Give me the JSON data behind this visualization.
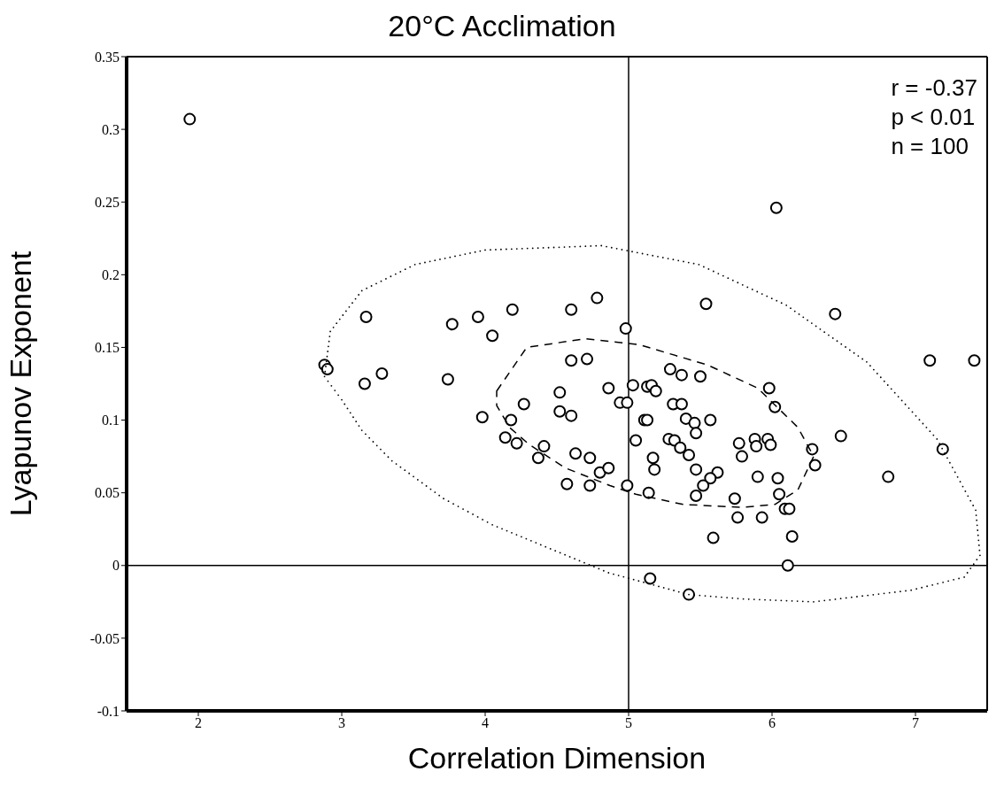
{
  "chart_data": {
    "type": "scatter",
    "title": "20°C Acclimation",
    "xlabel": "Correlation Dimension",
    "ylabel": "Lyapunov Exponent",
    "annotations": [
      "r = -0.37",
      "p < 0.01",
      "n = 100"
    ],
    "xlim": [
      1.5,
      7.5
    ],
    "ylim": [
      -0.1,
      0.35
    ],
    "xticks": [
      2,
      3,
      4,
      5,
      6,
      7
    ],
    "yticks": [
      -0.1,
      -0.05,
      0,
      0.05,
      0.1,
      0.15,
      0.2,
      0.25,
      0.3,
      0.35
    ],
    "grid": false,
    "legend": false,
    "ref_lines": [
      {
        "axis": "x",
        "value": 5,
        "color": "#000000"
      },
      {
        "axis": "y",
        "value": 0,
        "color": "#000000"
      }
    ],
    "series": [
      {
        "type": "scatter",
        "color": "#000000",
        "marker": "circle",
        "x": [
          1.94,
          2.88,
          2.9,
          3.17,
          3.16,
          3.28,
          3.74,
          3.77,
          3.95,
          4.05,
          4.19,
          4.6,
          4.78,
          4.98,
          4.6,
          4.71,
          4.52,
          4.86,
          5.03,
          4.94,
          4.99,
          4.27,
          3.98,
          4.18,
          4.52,
          4.6,
          4.14,
          4.22,
          4.41,
          4.37,
          4.63,
          4.73,
          4.8,
          4.86,
          4.57,
          4.73,
          4.99,
          5.05,
          5.54,
          6.44,
          7.1,
          7.41,
          7.19,
          6.81,
          6.48,
          6.28,
          6.3,
          5.98,
          6.02,
          5.29,
          5.37,
          5.5,
          5.13,
          5.16,
          5.19,
          5.31,
          5.37,
          5.11,
          5.13,
          5.4,
          5.46,
          5.47,
          5.57,
          5.28,
          5.32,
          5.36,
          5.42,
          5.77,
          5.79,
          5.88,
          5.89,
          5.97,
          5.99,
          5.17,
          5.18,
          5.47,
          5.62,
          5.57,
          5.52,
          5.47,
          5.14,
          5.9,
          6.04,
          6.05,
          5.74,
          5.76,
          5.93,
          6.09,
          6.12,
          5.59,
          6.14,
          6.11,
          5.15,
          5.42,
          6.03
        ],
        "values": [
          0.307,
          0.138,
          0.135,
          0.171,
          0.125,
          0.132,
          0.128,
          0.166,
          0.171,
          0.158,
          0.176,
          0.176,
          0.184,
          0.163,
          0.141,
          0.142,
          0.119,
          0.122,
          0.124,
          0.112,
          0.112,
          0.111,
          0.102,
          0.1,
          0.106,
          0.103,
          0.088,
          0.084,
          0.082,
          0.074,
          0.077,
          0.074,
          0.064,
          0.067,
          0.056,
          0.055,
          0.055,
          0.086,
          0.18,
          0.173,
          0.141,
          0.141,
          0.08,
          0.061,
          0.089,
          0.08,
          0.069,
          0.122,
          0.109,
          0.135,
          0.131,
          0.13,
          0.123,
          0.124,
          0.12,
          0.111,
          0.111,
          0.1,
          0.1,
          0.101,
          0.098,
          0.091,
          0.1,
          0.087,
          0.086,
          0.081,
          0.076,
          0.084,
          0.075,
          0.087,
          0.082,
          0.087,
          0.083,
          0.074,
          0.066,
          0.066,
          0.064,
          0.06,
          0.055,
          0.048,
          0.05,
          0.061,
          0.06,
          0.049,
          0.046,
          0.033,
          0.033,
          0.039,
          0.039,
          0.019,
          0.02,
          0.0,
          -0.009,
          -0.02,
          0.246
        ]
      }
    ]
  }
}
